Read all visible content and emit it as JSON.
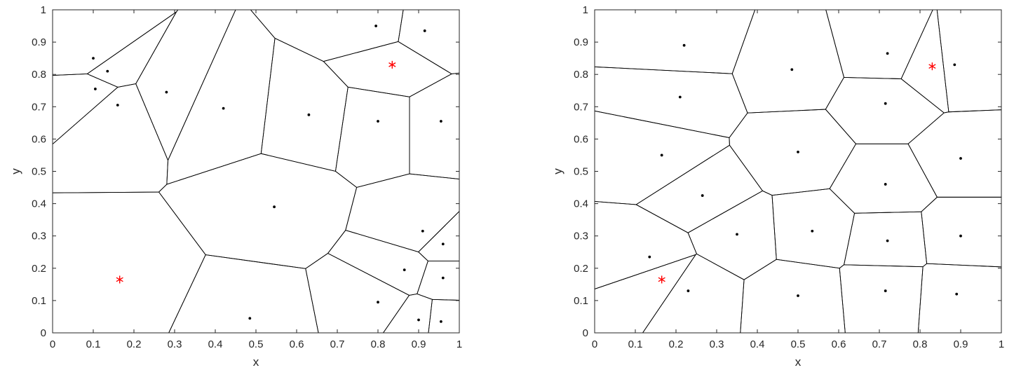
{
  "page": {
    "background": "#ffffff"
  },
  "chart_data": [
    {
      "type": "voronoi",
      "title": "",
      "xlabel": "x",
      "ylabel": "y",
      "xlim": [
        0,
        1
      ],
      "ylim": [
        0,
        1
      ],
      "xticks": [
        0,
        0.1,
        0.2,
        0.3,
        0.4,
        0.5,
        0.6,
        0.7,
        0.8,
        0.9,
        1
      ],
      "xtick_labels": [
        "0",
        "0.1",
        "0.2",
        "0.3",
        "0.4",
        "0.5",
        "0.6",
        "0.7",
        "0.8",
        "0.9",
        "1"
      ],
      "yticks": [
        0,
        0.1,
        0.2,
        0.3,
        0.4,
        0.5,
        0.6,
        0.7,
        0.8,
        0.9,
        1
      ],
      "ytick_labels": [
        "0",
        "0.1",
        "0.2",
        "0.3",
        "0.4",
        "0.5",
        "0.6",
        "0.7",
        "0.8",
        "0.9",
        "1"
      ],
      "points": [
        [
          0.1,
          0.85
        ],
        [
          0.135,
          0.81
        ],
        [
          0.105,
          0.755
        ],
        [
          0.16,
          0.705
        ],
        [
          0.28,
          0.745
        ],
        [
          0.42,
          0.695
        ],
        [
          0.63,
          0.675
        ],
        [
          0.795,
          0.95
        ],
        [
          0.915,
          0.935
        ],
        [
          0.8,
          0.655
        ],
        [
          0.955,
          0.655
        ],
        [
          0.545,
          0.39
        ],
        [
          0.91,
          0.315
        ],
        [
          0.96,
          0.275
        ],
        [
          0.865,
          0.195
        ],
        [
          0.96,
          0.17
        ],
        [
          0.8,
          0.095
        ],
        [
          0.485,
          0.045
        ],
        [
          0.9,
          0.04
        ],
        [
          0.955,
          0.035
        ]
      ],
      "highlight_points": [
        [
          0.165,
          0.165
        ],
        [
          0.835,
          0.83
        ]
      ],
      "point_color": "#000000",
      "highlight_color": "#ff0000",
      "line_color": "#000000",
      "axis_color": "#262626",
      "grid": false,
      "legend": "none"
    },
    {
      "type": "voronoi",
      "title": "",
      "xlabel": "x",
      "ylabel": "y",
      "xlim": [
        0,
        1
      ],
      "ylim": [
        0,
        1
      ],
      "xticks": [
        0,
        0.1,
        0.2,
        0.3,
        0.4,
        0.5,
        0.6,
        0.7,
        0.8,
        0.9,
        1
      ],
      "xtick_labels": [
        "0",
        "0.1",
        "0.2",
        "0.3",
        "0.4",
        "0.5",
        "0.6",
        "0.7",
        "0.8",
        "0.9",
        "1"
      ],
      "yticks": [
        0,
        0.1,
        0.2,
        0.3,
        0.4,
        0.5,
        0.6,
        0.7,
        0.8,
        0.9,
        1
      ],
      "ytick_labels": [
        "0",
        "0.1",
        "0.2",
        "0.3",
        "0.4",
        "0.5",
        "0.6",
        "0.7",
        "0.8",
        "0.9",
        "1"
      ],
      "points": [
        [
          0.22,
          0.89
        ],
        [
          0.485,
          0.815
        ],
        [
          0.72,
          0.865
        ],
        [
          0.885,
          0.83
        ],
        [
          0.21,
          0.73
        ],
        [
          0.715,
          0.71
        ],
        [
          0.165,
          0.55
        ],
        [
          0.5,
          0.56
        ],
        [
          0.9,
          0.54
        ],
        [
          0.265,
          0.425
        ],
        [
          0.715,
          0.46
        ],
        [
          0.35,
          0.305
        ],
        [
          0.535,
          0.315
        ],
        [
          0.72,
          0.285
        ],
        [
          0.9,
          0.3
        ],
        [
          0.135,
          0.235
        ],
        [
          0.23,
          0.13
        ],
        [
          0.5,
          0.115
        ],
        [
          0.715,
          0.13
        ],
        [
          0.89,
          0.12
        ]
      ],
      "highlight_points": [
        [
          0.165,
          0.165
        ],
        [
          0.83,
          0.825
        ]
      ],
      "point_color": "#000000",
      "highlight_color": "#ff0000",
      "line_color": "#000000",
      "axis_color": "#262626",
      "grid": false,
      "legend": "none"
    }
  ]
}
